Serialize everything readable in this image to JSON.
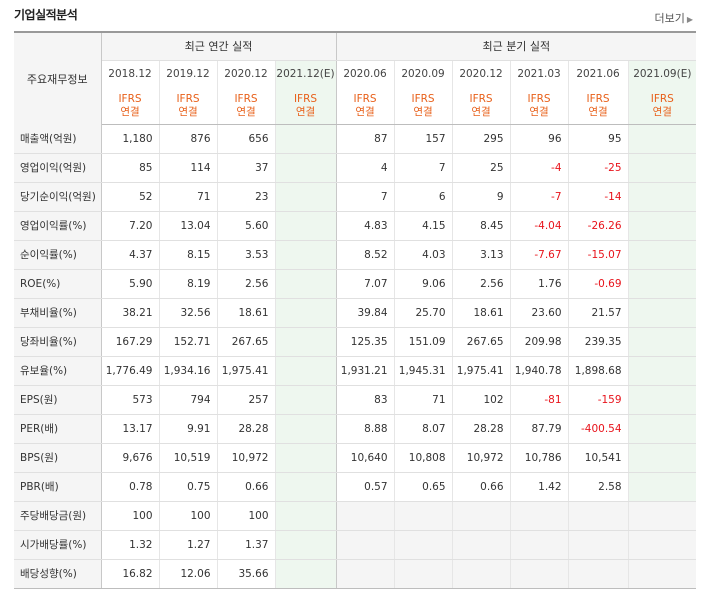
{
  "header": {
    "title": "기업실적분석",
    "more_label": "더보기",
    "more_icon": "chevron-right-icon"
  },
  "table": {
    "corner_label": "주요재무정보",
    "annual_group": "최근 연간 실적",
    "quarterly_group": "최근 분기 실적",
    "annual_periods": [
      "2018.12",
      "2019.12",
      "2020.12",
      "2021.12(E)"
    ],
    "quarterly_periods": [
      "2020.06",
      "2020.09",
      "2020.12",
      "2021.03",
      "2021.06",
      "2021.09(E)"
    ],
    "ifrs_top": "IFRS",
    "ifrs_bottom": "연결",
    "rows": [
      {
        "label": "매출액(억원)",
        "annual": [
          "1,180",
          "876",
          "656",
          ""
        ],
        "quarterly": [
          "87",
          "157",
          "295",
          "96",
          "95",
          ""
        ]
      },
      {
        "label": "영업이익(억원)",
        "annual": [
          "85",
          "114",
          "37",
          ""
        ],
        "quarterly": [
          "4",
          "7",
          "25",
          "-4",
          "-25",
          ""
        ]
      },
      {
        "label": "당기순이익(억원)",
        "annual": [
          "52",
          "71",
          "23",
          ""
        ],
        "quarterly": [
          "7",
          "6",
          "9",
          "-7",
          "-14",
          ""
        ]
      },
      {
        "label": "영업이익률(%)",
        "annual": [
          "7.20",
          "13.04",
          "5.60",
          ""
        ],
        "quarterly": [
          "4.83",
          "4.15",
          "8.45",
          "-4.04",
          "-26.26",
          ""
        ]
      },
      {
        "label": "순이익률(%)",
        "annual": [
          "4.37",
          "8.15",
          "3.53",
          ""
        ],
        "quarterly": [
          "8.52",
          "4.03",
          "3.13",
          "-7.67",
          "-15.07",
          ""
        ]
      },
      {
        "label": "ROE(%)",
        "annual": [
          "5.90",
          "8.19",
          "2.56",
          ""
        ],
        "quarterly": [
          "7.07",
          "9.06",
          "2.56",
          "1.76",
          "-0.69",
          ""
        ]
      },
      {
        "label": "부채비율(%)",
        "annual": [
          "38.21",
          "32.56",
          "18.61",
          ""
        ],
        "quarterly": [
          "39.84",
          "25.70",
          "18.61",
          "23.60",
          "21.57",
          ""
        ]
      },
      {
        "label": "당좌비율(%)",
        "annual": [
          "167.29",
          "152.71",
          "267.65",
          ""
        ],
        "quarterly": [
          "125.35",
          "151.09",
          "267.65",
          "209.98",
          "239.35",
          ""
        ]
      },
      {
        "label": "유보율(%)",
        "annual": [
          "1,776.49",
          "1,934.16",
          "1,975.41",
          ""
        ],
        "quarterly": [
          "1,931.21",
          "1,945.31",
          "1,975.41",
          "1,940.78",
          "1,898.68",
          ""
        ]
      },
      {
        "label": "EPS(원)",
        "annual": [
          "573",
          "794",
          "257",
          ""
        ],
        "quarterly": [
          "83",
          "71",
          "102",
          "-81",
          "-159",
          ""
        ]
      },
      {
        "label": "PER(배)",
        "annual": [
          "13.17",
          "9.91",
          "28.28",
          ""
        ],
        "quarterly": [
          "8.88",
          "8.07",
          "28.28",
          "87.79",
          "-400.54",
          ""
        ]
      },
      {
        "label": "BPS(원)",
        "annual": [
          "9,676",
          "10,519",
          "10,972",
          ""
        ],
        "quarterly": [
          "10,640",
          "10,808",
          "10,972",
          "10,786",
          "10,541",
          ""
        ]
      },
      {
        "label": "PBR(배)",
        "annual": [
          "0.78",
          "0.75",
          "0.66",
          ""
        ],
        "quarterly": [
          "0.57",
          "0.65",
          "0.66",
          "1.42",
          "2.58",
          ""
        ]
      },
      {
        "label": "주당배당금(원)",
        "annual": [
          "100",
          "100",
          "100",
          ""
        ],
        "quarterly": null
      },
      {
        "label": "시가배당률(%)",
        "annual": [
          "1.32",
          "1.27",
          "1.37",
          ""
        ],
        "quarterly": null
      },
      {
        "label": "배당성향(%)",
        "annual": [
          "16.82",
          "12.06",
          "35.66",
          ""
        ],
        "quarterly": null
      }
    ]
  },
  "colors": {
    "accent": "#e8601a",
    "negative": "#e8131b",
    "estimate_bg": "#eef7ef",
    "header_bg": "#f5f5f5"
  }
}
